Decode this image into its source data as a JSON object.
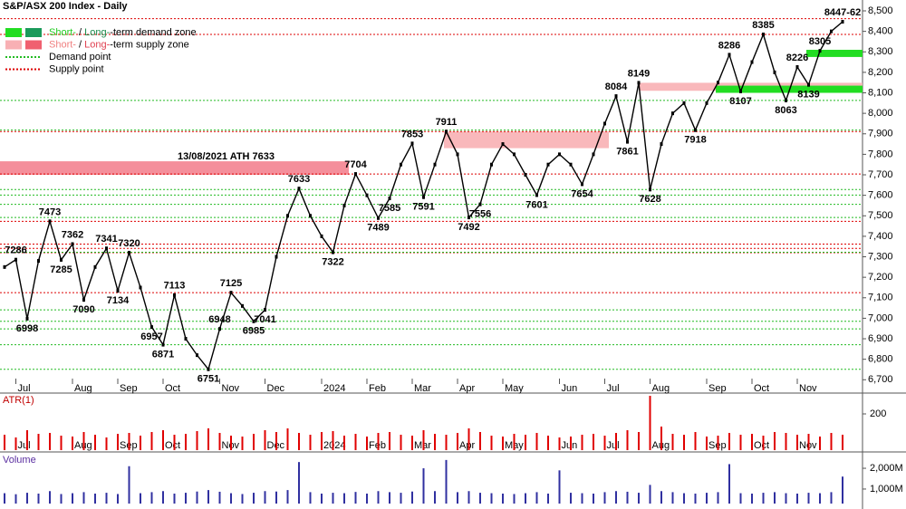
{
  "chart_data": [
    {
      "type": "line",
      "title": "S&P/ASX 200 Index - Daily",
      "color": "#000000",
      "categories": [
        null,
        "Jul",
        null,
        null,
        null,
        null,
        "Aug",
        null,
        null,
        null,
        "Sep",
        null,
        null,
        null,
        "Oct",
        null,
        null,
        null,
        null,
        "Nov",
        null,
        null,
        null,
        "Dec",
        null,
        null,
        null,
        null,
        "2024",
        null,
        null,
        null,
        "Feb",
        null,
        null,
        null,
        "Mar",
        null,
        null,
        null,
        "Apr",
        null,
        null,
        null,
        "May",
        null,
        null,
        null,
        null,
        "Jun",
        null,
        null,
        null,
        "Jul",
        null,
        null,
        null,
        "Aug",
        null,
        null,
        null,
        null,
        "Sep",
        null,
        null,
        null,
        "Oct",
        null,
        null,
        null,
        "Nov",
        null,
        null,
        null,
        null
      ],
      "values": [
        7250,
        7286,
        6998,
        7280,
        7473,
        7285,
        7362,
        7090,
        7250,
        7341,
        7134,
        7320,
        7150,
        6957,
        6871,
        7113,
        6900,
        6820,
        6751,
        6948,
        7125,
        7060,
        6985,
        7041,
        7300,
        7500,
        7633,
        7500,
        7400,
        7322,
        7550,
        7704,
        7600,
        7489,
        7585,
        7750,
        7853,
        7591,
        7750,
        7911,
        7800,
        7492,
        7556,
        7750,
        7850,
        7800,
        7700,
        7601,
        7750,
        7800,
        7750,
        7654,
        7800,
        7950,
        8084,
        7861,
        8149,
        7628,
        7850,
        8000,
        8050,
        7918,
        8050,
        8150,
        8286,
        8107,
        8250,
        8385,
        8200,
        8063,
        8226,
        8139,
        8305,
        8400,
        8447
      ],
      "value_labels": [
        null,
        "7286",
        "6998",
        null,
        "7473",
        "7285",
        "7362",
        "7090",
        null,
        "7341",
        "7134",
        "7320",
        null,
        "6957",
        "6871",
        "7113",
        null,
        null,
        "6751",
        "6948",
        "7125",
        null,
        "6985",
        "7041",
        null,
        null,
        "7633",
        null,
        null,
        "7322",
        null,
        "7704",
        null,
        "7489",
        "7585",
        null,
        "7853",
        "7591",
        null,
        "7911",
        null,
        "7492",
        "7556",
        null,
        null,
        null,
        null,
        "7601",
        null,
        null,
        null,
        "7654",
        null,
        null,
        "8084",
        "7861",
        "8149",
        "7628",
        null,
        null,
        null,
        "7918",
        null,
        null,
        "8286",
        "8107",
        null,
        "8385",
        null,
        "8063",
        "8226",
        "8139",
        "8305",
        null,
        "8447-62"
      ],
      "annotation": "13/08/2021 ATH 7633",
      "legend": [
        [
          "Short-",
          " / ",
          "Long-",
          "-term demand zone"
        ],
        [
          "Short-",
          " / ",
          "Long-",
          "-term supply zone"
        ],
        [
          "Demand point"
        ],
        [
          "Supply point"
        ]
      ],
      "supply_zones": [
        [
          7700,
          7766
        ],
        [
          7830,
          7911
        ],
        [
          8110,
          8149
        ]
      ],
      "demand_zones": [
        [
          8100,
          8135
        ],
        [
          8275,
          8310
        ]
      ],
      "supply_points": [
        8462,
        8385,
        7911,
        7704,
        7473,
        7362,
        7341,
        7320,
        7125
      ],
      "demand_points": [
        8063,
        7918,
        7628,
        7601,
        7556,
        7492,
        7322,
        7041,
        6985,
        6948,
        6871,
        6751
      ],
      "ylim": [
        6688,
        8553
      ],
      "yticks": [
        {
          "value": 6700,
          "label": "6,700"
        },
        {
          "value": 6800,
          "label": "6,800"
        },
        {
          "value": 6900,
          "label": "6,900"
        },
        {
          "value": 7000,
          "label": "7,000"
        },
        {
          "value": 7100,
          "label": "7,100"
        },
        {
          "value": 7200,
          "label": "7,200"
        },
        {
          "value": 7300,
          "label": "7,300"
        },
        {
          "value": 7400,
          "label": "7,400"
        },
        {
          "value": 7500,
          "label": "7,500"
        },
        {
          "value": 7600,
          "label": "7,600"
        },
        {
          "value": 7700,
          "label": "7,700"
        },
        {
          "value": 7800,
          "label": "7,800"
        },
        {
          "value": 7900,
          "label": "7,900"
        },
        {
          "value": 8000,
          "label": "8,000"
        },
        {
          "value": 8100,
          "label": "8,100"
        },
        {
          "value": 8200,
          "label": "8,200"
        },
        {
          "value": 8300,
          "label": "8,300"
        },
        {
          "value": 8400,
          "label": "8,400"
        },
        {
          "value": 8500,
          "label": "8,500"
        }
      ]
    },
    {
      "type": "bar",
      "title": "ATR(1)",
      "color": "#e00000",
      "values": [
        85,
        70,
        110,
        90,
        95,
        80,
        75,
        100,
        85,
        70,
        90,
        95,
        80,
        100,
        110,
        85,
        90,
        105,
        120,
        95,
        80,
        75,
        90,
        110,
        100,
        120,
        95,
        85,
        100,
        105,
        80,
        90,
        75,
        95,
        100,
        85,
        80,
        110,
        90,
        85,
        95,
        120,
        100,
        80,
        75,
        90,
        85,
        95,
        80,
        70,
        75,
        85,
        90,
        80,
        95,
        110,
        100,
        300,
        130,
        90,
        85,
        100,
        75,
        80,
        95,
        85,
        90,
        80,
        100,
        95,
        85,
        90,
        75,
        95,
        85
      ],
      "ylim": [
        0,
        300
      ],
      "yticks": [
        200
      ]
    },
    {
      "type": "bar",
      "title": "Volume",
      "color": "#3030a0",
      "values": [
        800,
        750,
        820,
        780,
        900,
        760,
        800,
        850,
        780,
        820,
        760,
        2100,
        800,
        850,
        900,
        780,
        820,
        880,
        950,
        870,
        800,
        760,
        820,
        900,
        880,
        950,
        2300,
        850,
        780,
        820,
        800,
        860,
        780,
        900,
        850,
        820,
        880,
        2000,
        900,
        2400,
        850,
        900,
        820,
        800,
        780,
        760,
        800,
        850,
        780,
        1900,
        820,
        800,
        780,
        850,
        900,
        870,
        820,
        1200,
        900,
        850,
        800,
        780,
        820,
        850,
        2200,
        800,
        780,
        820,
        850,
        800,
        780,
        820,
        800,
        850,
        1600
      ],
      "ylim": [
        300,
        2700
      ],
      "yticks": [
        {
          "value": 1000,
          "label": "1,000M"
        },
        {
          "value": 2000,
          "label": "2,000M"
        }
      ]
    }
  ]
}
